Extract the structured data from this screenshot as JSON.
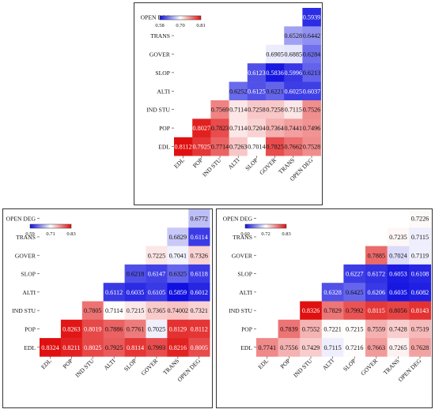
{
  "chart_data": [
    {
      "type": "heatmap",
      "layout": "lower-triangular",
      "rows": [
        "OPEN DEG",
        "TRANS",
        "GOVER",
        "SLOP",
        "ALTI",
        "IND STU",
        "POP",
        "EDL"
      ],
      "columns": [
        "EDL",
        "POP",
        "IND STU",
        "ALTI",
        "SLOP",
        "GOVER",
        "TRANS",
        "OPEN DEG"
      ],
      "values": [
        [
          null,
          null,
          null,
          null,
          null,
          null,
          null,
          "0.5939"
        ],
        [
          null,
          null,
          null,
          null,
          null,
          null,
          "0.6528",
          "0.6442"
        ],
        [
          null,
          null,
          null,
          null,
          null,
          "0.6905",
          "0.6885",
          "0.6284"
        ],
        [
          null,
          null,
          null,
          null,
          "0.6123",
          "0.5836",
          "0.5996",
          "0.6213"
        ],
        [
          null,
          null,
          null,
          "0.6252",
          "0.6125",
          "0.6221",
          "0.6025",
          "0.6037"
        ],
        [
          null,
          null,
          "0.7569",
          "0.7114",
          "0.7258",
          "0.7258",
          "0.7115",
          "0.7526"
        ],
        [
          null,
          "0.8027",
          "0.7823",
          "0.7114",
          "0.7204",
          "0.7364",
          "0.7441",
          "0.7496"
        ],
        [
          "0.8112",
          "0.7925",
          "0.7714",
          "0.7263",
          "0.7014",
          "0.7825",
          "0.7662",
          "0.7528"
        ]
      ],
      "colorbar": {
        "min": 0.58,
        "mid": 0.7,
        "max": 0.81,
        "labels": [
          "0.58",
          "0.70",
          "0.81"
        ],
        "low_color": "#1010e0",
        "mid_color": "#ffffff",
        "high_color": "#e01010"
      }
    },
    {
      "type": "heatmap",
      "layout": "lower-triangular",
      "rows": [
        "OPEN DEG",
        "TRANS",
        "GOVER",
        "SLOP",
        "ALTI",
        "IND STU",
        "POP",
        "EDL"
      ],
      "columns": [
        "EDL",
        "POP",
        "IND STU",
        "ALTI",
        "SLOP",
        "GOVER",
        "TRANS",
        "OPEN DEG"
      ],
      "values": [
        [
          null,
          null,
          null,
          null,
          null,
          null,
          null,
          "0.6772"
        ],
        [
          null,
          null,
          null,
          null,
          null,
          null,
          "0.6829",
          "0.6114"
        ],
        [
          null,
          null,
          null,
          null,
          null,
          "0.7225",
          "0.7041",
          "0.7326"
        ],
        [
          null,
          null,
          null,
          null,
          "0.6218",
          "0.6147",
          "0.6325",
          "0.6118"
        ],
        [
          null,
          null,
          null,
          "0.6112",
          "0.6035",
          "0.6105",
          "0.5859",
          "0.6012"
        ],
        [
          null,
          null,
          "0.7805",
          "0.7114",
          "0.7215",
          "0.7365",
          "0.74002",
          "0.7321"
        ],
        [
          null,
          "0.8263",
          "0.8019",
          "0.7886",
          "0.7761",
          "0.7025",
          "0.8129",
          "0.8112"
        ],
        [
          "0.8324",
          "0.8211",
          "0.8025",
          "0.7925",
          "0.8114",
          "0.7993",
          "0.8216",
          "0.8005"
        ]
      ],
      "colorbar": {
        "min": 0.59,
        "mid": 0.71,
        "max": 0.83,
        "labels": [
          "0.59",
          "0.71",
          "0.83"
        ],
        "low_color": "#1010e0",
        "mid_color": "#ffffff",
        "high_color": "#e01010"
      }
    },
    {
      "type": "heatmap",
      "layout": "lower-triangular",
      "rows": [
        "OPEN DEG",
        "TRANS",
        "GOVER",
        "SLOP",
        "ALTI",
        "IND STU",
        "POP",
        "EDL"
      ],
      "columns": [
        "EDL",
        "POP",
        "IND STU",
        "ALTI",
        "SLOP",
        "GOVER",
        "TRANS",
        "OPEN DEG"
      ],
      "values": [
        [
          null,
          null,
          null,
          null,
          null,
          null,
          null,
          "0.7226"
        ],
        [
          null,
          null,
          null,
          null,
          null,
          null,
          "0.7235",
          "0.7115"
        ],
        [
          null,
          null,
          null,
          null,
          null,
          "0.7885",
          "0.7024",
          "0.7119"
        ],
        [
          null,
          null,
          null,
          null,
          "0.6227",
          "0.6172",
          "0.6053",
          "0.6108"
        ],
        [
          null,
          null,
          null,
          "0.6328",
          "0.6425",
          "0.6206",
          "0.6035",
          "0.6082"
        ],
        [
          null,
          null,
          "0.8326",
          "0.7829",
          "0.7992",
          "0.8115",
          "0.8056",
          "0.8143"
        ],
        [
          null,
          "0.7839",
          "0.7552",
          "0.7221",
          "0.7215",
          "0.7559",
          "0.7428",
          "0.7519"
        ],
        [
          "0.7741",
          "0.7556",
          "0.7429",
          "0.7115",
          "0.7216",
          "0.7663",
          "0.7265",
          "0.7628"
        ]
      ],
      "colorbar": {
        "min": 0.6,
        "mid": 0.72,
        "max": 0.83,
        "labels": [
          "0.60",
          "0.72",
          "0.83"
        ],
        "low_color": "#1010e0",
        "mid_color": "#ffffff",
        "high_color": "#e01010"
      }
    }
  ]
}
